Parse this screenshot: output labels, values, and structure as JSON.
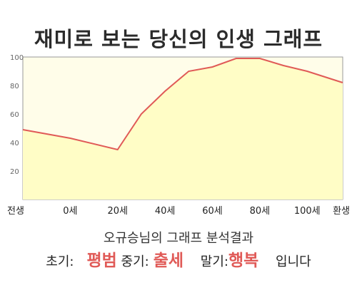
{
  "chart_data": {
    "type": "area",
    "title": "재미로 보는 당신의 인생 그래프",
    "x": [
      "전생",
      "0세",
      "20세",
      "40세",
      "60세",
      "80세",
      "100세",
      "환생"
    ],
    "points": [
      {
        "x": "전생",
        "y": 49
      },
      {
        "x": "0세",
        "y": 43
      },
      {
        "x": "20세",
        "y": 35
      },
      {
        "x": "30세",
        "y": 60
      },
      {
        "x": "40세",
        "y": 76
      },
      {
        "x": "50세",
        "y": 90
      },
      {
        "x": "60세",
        "y": 93
      },
      {
        "x": "70세",
        "y": 99
      },
      {
        "x": "80세",
        "y": 99
      },
      {
        "x": "90세",
        "y": 94
      },
      {
        "x": "100세",
        "y": 90
      },
      {
        "x": "환생",
        "y": 82
      }
    ],
    "ylim": [
      0,
      100
    ],
    "yticks": [
      "20",
      "40",
      "60",
      "80",
      "100"
    ],
    "grid": false,
    "colors": {
      "line": "#e05a57",
      "fill": "#fffdc6",
      "background": "#fffde9"
    }
  },
  "summary": "오규승님의 그래프 분석결과",
  "result": {
    "early_label": "초기:",
    "early_value": "평범",
    "mid_label": "중기:",
    "mid_value": "출세",
    "late_label": "말기:",
    "late_value": "행복",
    "suffix": "입니다"
  }
}
